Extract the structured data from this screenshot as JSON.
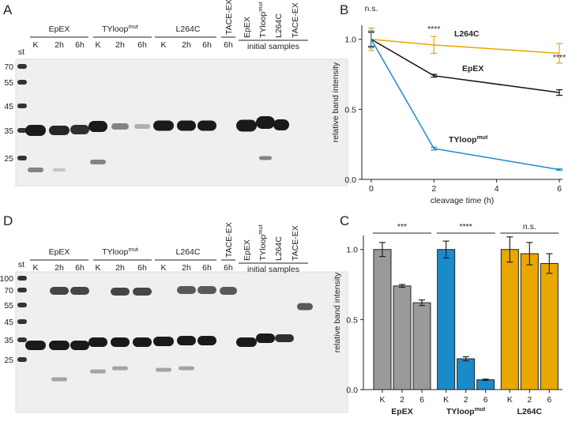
{
  "panel_labels": [
    "A",
    "B",
    "C",
    "D"
  ],
  "gel_a": {
    "marker_lane": "st",
    "markers": [
      70,
      55,
      45,
      35,
      25
    ],
    "groups": [
      {
        "name": "EpEX"
      },
      {
        "name": "TYloop",
        "sup": "mut"
      },
      {
        "name": "L264C"
      }
    ],
    "lanes": [
      "K",
      "2h",
      "6h",
      "K",
      "2h",
      "6h",
      "K",
      "2h",
      "6h",
      "6h"
    ],
    "tace_lane": "TACE-EX",
    "initial": {
      "label": "initial samples",
      "lanes": [
        {
          "name": "EpEX"
        },
        {
          "name": "TYloop",
          "sup": "mut"
        },
        {
          "name": "L264C"
        },
        {
          "name": "TACE-EX"
        }
      ]
    }
  },
  "gel_d": {
    "marker_lane": "st",
    "markers": [
      100,
      70,
      55,
      45,
      35,
      25
    ],
    "groups": [
      {
        "name": "EpEX"
      },
      {
        "name": "TYloop",
        "sup": "mut"
      },
      {
        "name": "L264C"
      }
    ],
    "lanes": [
      "K",
      "2h",
      "6h",
      "K",
      "2h",
      "6h",
      "K",
      "2h",
      "6h",
      "6h"
    ],
    "tace_lane": "TACE-EX",
    "initial": {
      "label": "initial samples",
      "lanes": [
        {
          "name": "EpEX"
        },
        {
          "name": "TYloop",
          "sup": "mut"
        },
        {
          "name": "L264C"
        },
        {
          "name": "TACE-EX"
        }
      ]
    }
  },
  "chart_data": [
    {
      "type": "line",
      "ylabel": "relative band intensity",
      "xlabel": "cleavage time (h)",
      "x": [
        0,
        2,
        6
      ],
      "xlim": [
        -0.3,
        6.1
      ],
      "xticks": [
        0,
        2,
        4,
        6
      ],
      "ylim": [
        0,
        1.1
      ],
      "yticks": [
        {
          "value": 0,
          "label": "0.0"
        },
        {
          "value": 0.5,
          "label": "0.5"
        },
        {
          "value": 1,
          "label": "1.0"
        }
      ],
      "series": [
        {
          "name": "L264C",
          "color": "#e8a800",
          "values": [
            1.0,
            0.96,
            0.9
          ],
          "errors": [
            0.08,
            0.06,
            0.07
          ]
        },
        {
          "name": "EpEX",
          "color": "#111111",
          "values": [
            1.0,
            0.74,
            0.62
          ],
          "errors": [
            0.05,
            0.01,
            0.02
          ]
        },
        {
          "name": "TYloop",
          "name_sup": "mut",
          "color": "#1a8bc9",
          "values": [
            1.0,
            0.22,
            0.07
          ],
          "errors": [
            0.06,
            0.01,
            0.005
          ]
        }
      ],
      "annotations": [
        {
          "text": "n.s.",
          "x": 0
        },
        {
          "text": "****",
          "x": 2
        },
        {
          "text": "****",
          "x": 6
        }
      ]
    },
    {
      "type": "bar",
      "ylabel": "relative band intensity",
      "ylim": [
        0,
        1.1
      ],
      "yticks": [
        {
          "value": 0,
          "label": "0.0"
        },
        {
          "value": 0.5,
          "label": "0.5"
        },
        {
          "value": 1,
          "label": "1.0"
        }
      ],
      "series": [
        {
          "name": "EpEX",
          "color": "#9a9a9a",
          "categories": [
            "K",
            "2",
            "6"
          ],
          "values": [
            1.0,
            0.74,
            0.62
          ],
          "errors": [
            0.05,
            0.01,
            0.02
          ],
          "significance": "***"
        },
        {
          "name": "TYloop",
          "name_sup": "mut",
          "color": "#1a8bc9",
          "categories": [
            "K",
            "2",
            "6"
          ],
          "values": [
            1.0,
            0.22,
            0.07
          ],
          "errors": [
            0.06,
            0.015,
            0.005
          ],
          "significance": "****"
        },
        {
          "name": "L264C",
          "color": "#e8a800",
          "categories": [
            "K",
            "2",
            "6"
          ],
          "values": [
            1.0,
            0.97,
            0.9
          ],
          "errors": [
            0.09,
            0.08,
            0.07
          ],
          "significance": "n.s."
        }
      ]
    }
  ]
}
